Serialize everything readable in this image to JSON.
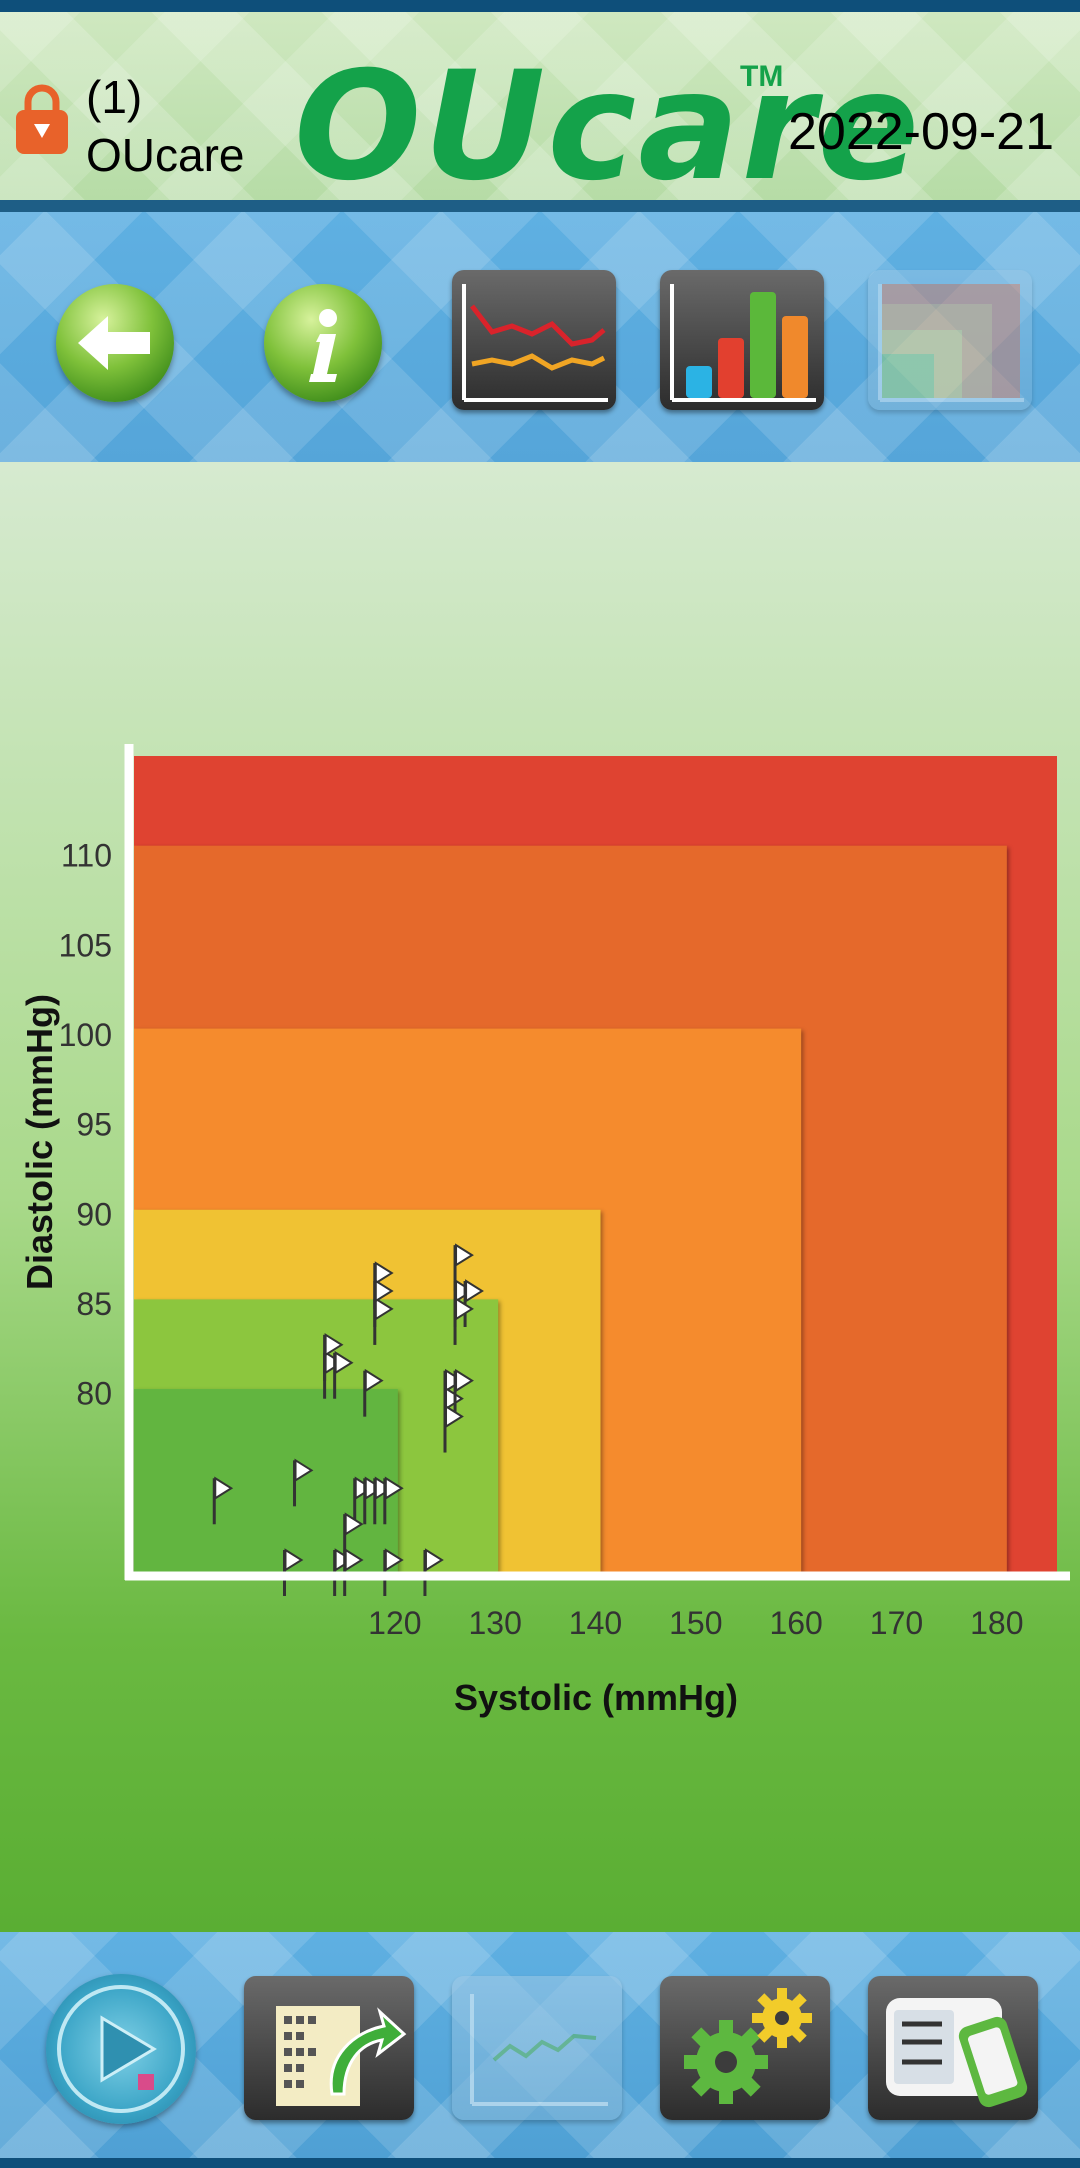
{
  "header": {
    "user_number": "(1)",
    "user_name": "OUcare",
    "brand": "OUcare",
    "trademark": "TM",
    "date": "2022-09-21",
    "lock_icon": "lock-icon"
  },
  "toolbar": {
    "buttons": [
      {
        "name": "back",
        "icon": "back-arrow-icon"
      },
      {
        "name": "info",
        "icon": "info-icon"
      },
      {
        "name": "line-chart",
        "icon": "line-chart-icon"
      },
      {
        "name": "bar-chart",
        "icon": "bar-chart-icon"
      },
      {
        "name": "zone-chart",
        "icon": "zone-chart-icon",
        "state": "disabled"
      }
    ]
  },
  "chart_data": {
    "type": "scatter",
    "xlabel": "Systolic (mmHg)",
    "ylabel": "Diastolic (mmHg)",
    "x_ticks": [
      120,
      130,
      140,
      150,
      160,
      170,
      180
    ],
    "y_ticks": [
      80,
      85,
      90,
      95,
      100,
      105,
      110
    ],
    "xlim": [
      94,
      186
    ],
    "ylim": [
      70,
      115.5
    ],
    "zones": [
      {
        "sys_max": 186,
        "dia_max": 115.5,
        "color": "#df4331"
      },
      {
        "sys_max": 181,
        "dia_max": 110.5,
        "color": "#e5692b"
      },
      {
        "sys_max": 160.5,
        "dia_max": 100.3,
        "color": "#f58b2d"
      },
      {
        "sys_max": 140.5,
        "dia_max": 90.2,
        "color": "#f0c233"
      },
      {
        "sys_max": 130.3,
        "dia_max": 85.2,
        "color": "#8cc63e"
      },
      {
        "sys_max": 120.3,
        "dia_max": 80.2,
        "color": "#62b540"
      }
    ],
    "points": [
      {
        "x": 118,
        "y": 86
      },
      {
        "x": 118,
        "y": 84
      },
      {
        "x": 118,
        "y": 85
      },
      {
        "x": 126,
        "y": 87
      },
      {
        "x": 126,
        "y": 85
      },
      {
        "x": 127,
        "y": 85
      },
      {
        "x": 126,
        "y": 84
      },
      {
        "x": 113,
        "y": 81
      },
      {
        "x": 113,
        "y": 82
      },
      {
        "x": 114,
        "y": 81
      },
      {
        "x": 117,
        "y": 80
      },
      {
        "x": 125,
        "y": 80
      },
      {
        "x": 125,
        "y": 79
      },
      {
        "x": 126,
        "y": 80
      },
      {
        "x": 125,
        "y": 78
      },
      {
        "x": 102,
        "y": 74
      },
      {
        "x": 110,
        "y": 75
      },
      {
        "x": 116,
        "y": 74
      },
      {
        "x": 117,
        "y": 74
      },
      {
        "x": 118,
        "y": 74
      },
      {
        "x": 119,
        "y": 74
      },
      {
        "x": 115,
        "y": 72
      },
      {
        "x": 109,
        "y": 70
      },
      {
        "x": 114,
        "y": 70
      },
      {
        "x": 115,
        "y": 70
      },
      {
        "x": 119,
        "y": 70
      },
      {
        "x": 123,
        "y": 70
      }
    ],
    "point_marker": "flag-icon"
  },
  "bottombar": {
    "buttons": [
      {
        "name": "measure",
        "icon": "play-icon"
      },
      {
        "name": "export",
        "icon": "export-icon"
      },
      {
        "name": "trend",
        "icon": "trend-chart-icon",
        "state": "disabled"
      },
      {
        "name": "settings",
        "icon": "gear-icon"
      },
      {
        "name": "device",
        "icon": "device-sync-icon"
      }
    ]
  }
}
